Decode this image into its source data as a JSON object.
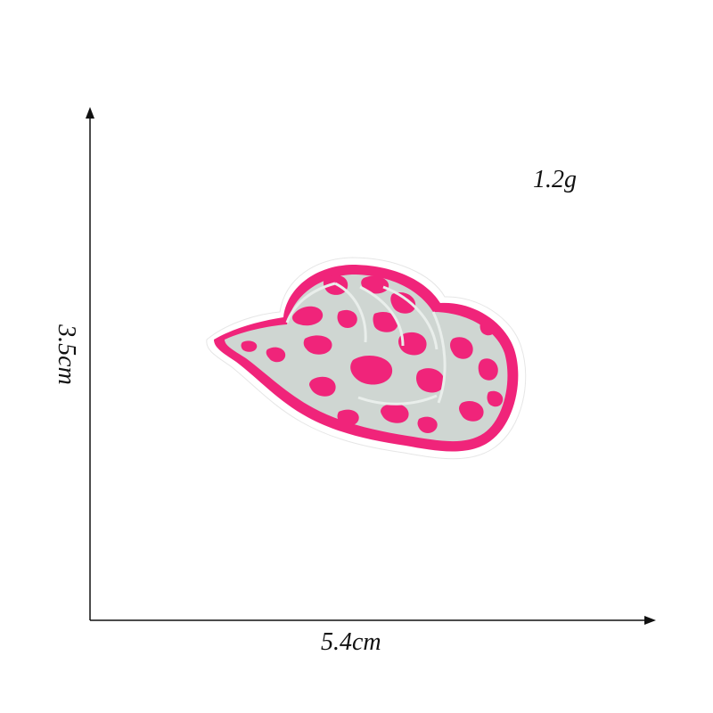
{
  "labels": {
    "weight": "1.2g",
    "width": "5.4cm",
    "height": "3.5cm"
  },
  "colors": {
    "pink": "#f0247a",
    "grey": "#cfd6d2",
    "axis": "#111111"
  }
}
